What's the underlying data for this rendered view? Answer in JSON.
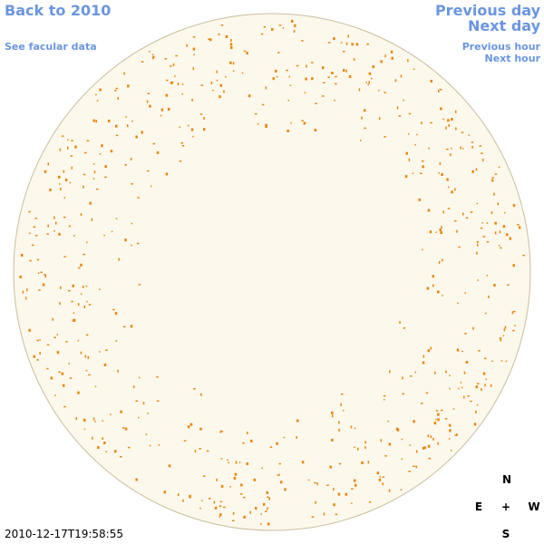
{
  "nav": {
    "back": "Back to 2010",
    "facular": "See facular data",
    "previous_day": "Previous day",
    "next_day": "Next day",
    "previous_hour": "Previous hour",
    "next_hour": "Next hour"
  },
  "timestamp": "2010-12-17T19:58:55",
  "compass": {
    "north": "N",
    "east": "E",
    "center": "+",
    "west": "W",
    "south": "S"
  }
}
